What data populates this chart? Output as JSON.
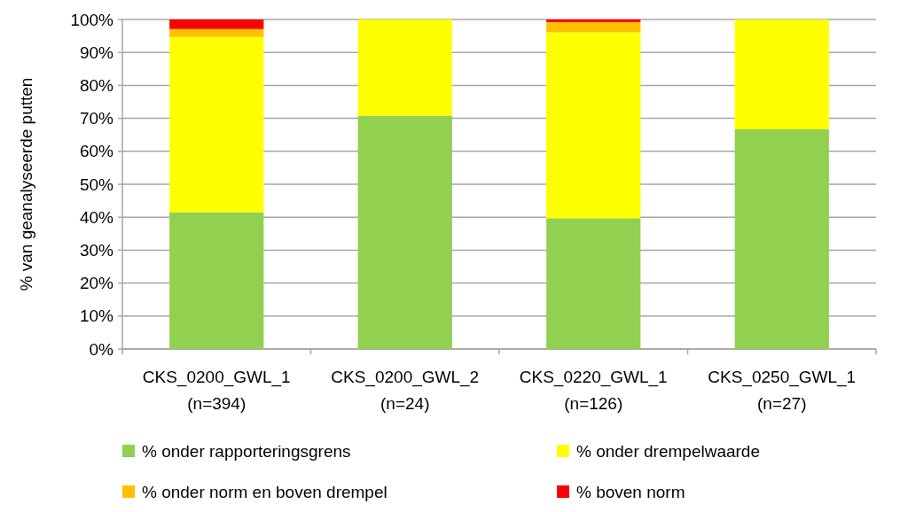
{
  "chart_data": {
    "type": "bar",
    "stacked": true,
    "ylabel": "% van geanalyseerde putten",
    "categories": [
      "CKS_0200_GWL_1\n(n=394)",
      "CKS_0200_GWL_2\n(n=24)",
      "CKS_0220_GWL_1\n(n=126)",
      "CKS_0250_GWL_1\n(n=27)"
    ],
    "series": [
      {
        "name": "% onder rapporteringsgrens",
        "color": "#92d050",
        "values": [
          41.5,
          70.8,
          39.7,
          66.7
        ]
      },
      {
        "name": "% onder drempelwaarde",
        "color": "#ffff00",
        "values": [
          53.2,
          29.2,
          56.4,
          33.3
        ]
      },
      {
        "name": "% onder norm en boven drempel",
        "color": "#ffc000",
        "values": [
          2.4,
          0,
          3.1,
          0
        ]
      },
      {
        "name": "% boven norm",
        "color": "#ff0000",
        "values": [
          2.9,
          0,
          0.8,
          0
        ]
      }
    ],
    "ylim": [
      0,
      100
    ],
    "yticks": [
      {
        "value": 0,
        "label": "0%"
      },
      {
        "value": 10,
        "label": "10%"
      },
      {
        "value": 20,
        "label": "20%"
      },
      {
        "value": 30,
        "label": "30%"
      },
      {
        "value": 40,
        "label": "40%"
      },
      {
        "value": 50,
        "label": "50%"
      },
      {
        "value": 60,
        "label": "60%"
      },
      {
        "value": 70,
        "label": "70%"
      },
      {
        "value": 80,
        "label": "80%"
      },
      {
        "value": 90,
        "label": "90%"
      },
      {
        "value": 100,
        "label": "100%"
      }
    ],
    "grid": "y",
    "legend": "bottom"
  }
}
